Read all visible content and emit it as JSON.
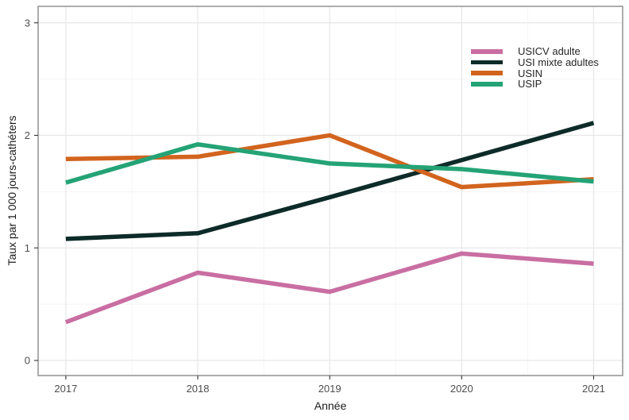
{
  "chart_data": {
    "type": "line",
    "title": "",
    "xlabel": "Année",
    "ylabel": "Taux par 1 000 jours-cathéters",
    "x": [
      2017,
      2018,
      2019,
      2020,
      2021
    ],
    "x_tick_labels": [
      "2017",
      "2018",
      "2019",
      "2020",
      "2021"
    ],
    "y_ticks": [
      0,
      1,
      2,
      3
    ],
    "y_tick_labels": [
      "0",
      "1",
      "2",
      "3"
    ],
    "xlim": [
      2016.79,
      2021.22
    ],
    "ylim": [
      -0.134,
      3.146
    ],
    "x_minor_ticks": [
      2017.5,
      2018.5,
      2019.5,
      2020.5
    ],
    "y_minor_ticks": [
      0.5,
      1.5,
      2.5
    ],
    "grid": "major+minor",
    "legend_position": "inside-top-right",
    "series": [
      {
        "name": "USICV adulte",
        "color": "#c96ea2",
        "values": [
          0.34,
          0.78,
          0.61,
          0.95,
          0.86
        ]
      },
      {
        "name": "USI mixte adultes",
        "color": "#0d2b28",
        "values": [
          1.08,
          1.13,
          1.45,
          1.78,
          2.11
        ]
      },
      {
        "name": "USIN",
        "color": "#d2641e",
        "values": [
          1.79,
          1.81,
          2.0,
          1.54,
          1.61
        ]
      },
      {
        "name": "USIP",
        "color": "#24a376",
        "values": [
          1.58,
          1.92,
          1.75,
          1.7,
          1.59
        ]
      }
    ],
    "style": {
      "panel_background": "#ffffff",
      "panel_border_color": "#a3a3a3",
      "grid_major_color": "#e8e8e8",
      "grid_minor_color": "#f4f4f4",
      "tick_mark_color": "#333333",
      "tick_label_color": "#4d4d4d",
      "axis_title_color": "#1a1a1a",
      "legend_text_color": "#262626",
      "line_width": 5.5
    }
  }
}
